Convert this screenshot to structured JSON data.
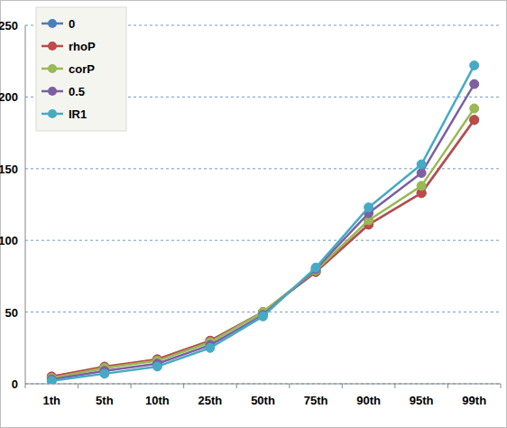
{
  "chart_data": {
    "type": "line",
    "categories": [
      "1th",
      "5th",
      "10th",
      "25th",
      "50th",
      "75th",
      "90th",
      "95th",
      "99th"
    ],
    "series": [
      {
        "name": "0",
        "color": "#4a7ebb",
        "values": [
          5,
          11,
          17,
          30,
          50,
          78,
          111,
          133,
          184
        ]
      },
      {
        "name": "rhoP",
        "color": "#be4b48",
        "values": [
          5,
          12,
          17,
          30,
          50,
          78,
          111,
          133,
          184
        ]
      },
      {
        "name": "corP",
        "color": "#98b954",
        "values": [
          4,
          11,
          16,
          29,
          50,
          79,
          114,
          138,
          192
        ]
      },
      {
        "name": "0.5",
        "color": "#7d5fa0",
        "values": [
          3,
          9,
          14,
          27,
          48,
          80,
          119,
          147,
          209
        ]
      },
      {
        "name": "IR1",
        "color": "#46aac5",
        "values": [
          2,
          7,
          12,
          25,
          47,
          81,
          123,
          153,
          222
        ]
      }
    ],
    "ylim": [
      0,
      250
    ],
    "yticks": [
      0,
      50,
      100,
      150,
      200,
      250
    ],
    "grid": true,
    "legend": "top-left",
    "marker": "circle"
  }
}
